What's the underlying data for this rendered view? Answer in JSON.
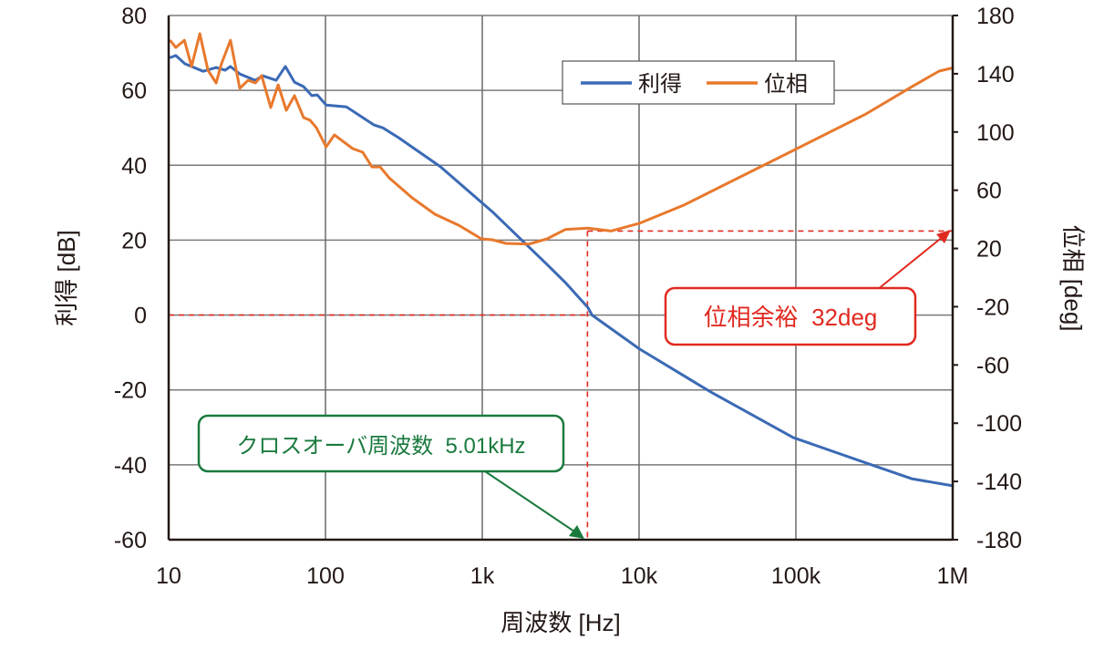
{
  "chart_data": {
    "type": "line",
    "title": "",
    "xlabel": "周波数 [Hz]",
    "ylabel_left": "利得 [dB]",
    "ylabel_right": "位相 [deg]",
    "xscale": "log",
    "xlim": [
      10,
      1000000
    ],
    "ylim_left": [
      -60,
      80
    ],
    "ylim_right": [
      -180,
      180
    ],
    "x_ticks": [
      10,
      100,
      1000,
      10000,
      100000,
      1000000
    ],
    "x_tick_labels": [
      "10",
      "100",
      "1k",
      "10k",
      "100k",
      "1M"
    ],
    "y_left_ticks": [
      80,
      60,
      40,
      20,
      0,
      -20,
      -40,
      -60
    ],
    "y_left_tick_labels": [
      "80",
      "60",
      "40",
      "20",
      "0",
      "-20",
      "-40",
      "-60"
    ],
    "y_right_ticks": [
      180,
      140,
      100,
      60,
      20,
      -20,
      -60,
      -100,
      -140,
      -180
    ],
    "y_right_tick_labels": [
      "180",
      "140",
      "100",
      "60",
      "20",
      "-20",
      "-60",
      "-100",
      "-140",
      "-180"
    ],
    "grid": true,
    "legend": {
      "placement": "top-right",
      "entries": [
        "利得",
        "位相"
      ]
    },
    "series": [
      {
        "name": "利得",
        "axis": "left",
        "color": "#3b6ab5",
        "x": [
          10.3,
          11.1,
          12.7,
          16.6,
          20.1,
          22.9,
          24.8,
          28.4,
          35.7,
          39.7,
          48.5,
          55.5,
          63.4,
          72.5,
          81.8,
          88.7,
          101,
          136,
          203,
          232,
          292,
          541,
          1159,
          2588,
          3381,
          4721,
          5010,
          10000,
          28800,
          96100,
          280000,
          547000,
          1000000
        ],
        "values": [
          68.8,
          69.3,
          67.1,
          65.1,
          66.1,
          65.4,
          66.4,
          64.4,
          62.7,
          63.9,
          62.7,
          66.4,
          62.2,
          61.0,
          58.6,
          58.8,
          56.1,
          55.6,
          50.8,
          50.0,
          47.4,
          39.6,
          27.6,
          13.5,
          8.7,
          2.0,
          0,
          -9.0,
          -20.6,
          -32.7,
          -39.5,
          -43.7,
          -45.6
        ]
      },
      {
        "name": "位相",
        "axis": "right",
        "color": "#e8792d",
        "x": [
          10.3,
          11.1,
          12.6,
          14.0,
          15.8,
          17.8,
          20.1,
          21.7,
          24.8,
          28.4,
          32.1,
          35.7,
          39.2,
          44.8,
          49.9,
          56.2,
          63.4,
          72.5,
          79.6,
          87.5,
          101,
          114,
          149,
          173,
          198,
          223,
          255,
          357,
          499,
          706,
          807,
          987,
          1159,
          1416,
          1982,
          2588,
          3381,
          4721,
          6600,
          10000,
          19300,
          37700,
          96100,
          280000,
          547000,
          819000,
          1000000
        ],
        "values": [
          162.5,
          158,
          163,
          145,
          167.5,
          142.4,
          133.7,
          146.8,
          163,
          130,
          135.5,
          133.7,
          138.7,
          116.8,
          132.4,
          114.9,
          124.9,
          109.9,
          108.1,
          103,
          89.8,
          98,
          88.6,
          86.1,
          76,
          76,
          68.5,
          54.8,
          43.5,
          36,
          32.3,
          26.6,
          26,
          23.5,
          23,
          26.6,
          33,
          34,
          32,
          37.2,
          49.8,
          65.4,
          87.3,
          112.4,
          131,
          141.8,
          144
        ]
      }
    ],
    "annotations": {
      "crossover": {
        "text": "クロスオーバ周波数  5.01kHz",
        "frequency": 5010,
        "color": "#1a7a3e"
      },
      "phase_margin": {
        "text": "位相余裕  32deg",
        "value": 32,
        "color": "#e02a20"
      }
    }
  }
}
